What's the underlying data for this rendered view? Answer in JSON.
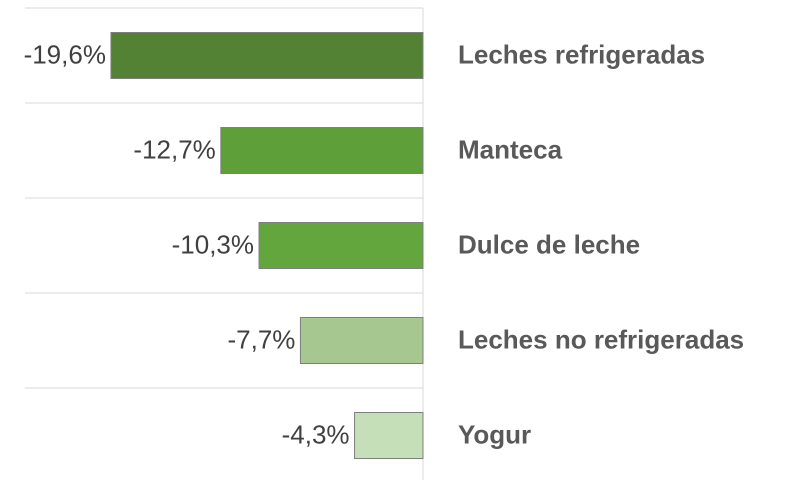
{
  "chart_data": {
    "type": "bar",
    "orientation": "horizontal",
    "categories": [
      "Leches refrigeradas",
      "Manteca",
      "Dulce de leche",
      "Leches no refrigeradas",
      "Yogur"
    ],
    "values": [
      -19.6,
      -12.7,
      -10.3,
      -7.7,
      -4.3
    ],
    "value_labels": [
      "-19,6%",
      "-12,7%",
      "-10,3%",
      "-7,7%",
      "-4,3%"
    ],
    "colors": [
      "#548235",
      "#5f9f3a",
      "#64a63e",
      "#a6c78f",
      "#c5dfb8"
    ],
    "xlim": [
      -25,
      0
    ],
    "grid": true
  }
}
